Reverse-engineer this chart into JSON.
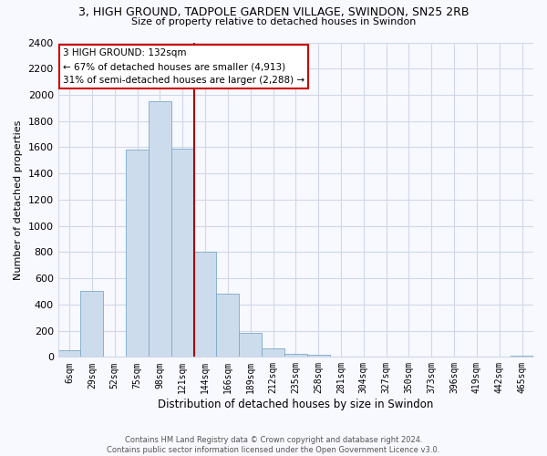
{
  "title": "3, HIGH GROUND, TADPOLE GARDEN VILLAGE, SWINDON, SN25 2RB",
  "subtitle": "Size of property relative to detached houses in Swindon",
  "xlabel": "Distribution of detached houses by size in Swindon",
  "ylabel": "Number of detached properties",
  "bar_color": "#ccdcec",
  "bar_edge_color": "#7aaac8",
  "categories": [
    "6sqm",
    "29sqm",
    "52sqm",
    "75sqm",
    "98sqm",
    "121sqm",
    "144sqm",
    "166sqm",
    "189sqm",
    "212sqm",
    "235sqm",
    "258sqm",
    "281sqm",
    "304sqm",
    "327sqm",
    "350sqm",
    "373sqm",
    "396sqm",
    "419sqm",
    "442sqm",
    "465sqm"
  ],
  "values": [
    50,
    500,
    0,
    1580,
    1950,
    1590,
    800,
    480,
    185,
    65,
    25,
    15,
    0,
    0,
    0,
    0,
    0,
    0,
    0,
    0,
    10
  ],
  "ylim": [
    0,
    2400
  ],
  "yticks": [
    0,
    200,
    400,
    600,
    800,
    1000,
    1200,
    1400,
    1600,
    1800,
    2000,
    2200,
    2400
  ],
  "vline_color": "#aa0000",
  "vline_pos": 5.5,
  "annotation_title": "3 HIGH GROUND: 132sqm",
  "annotation_line1": "← 67% of detached houses are smaller (4,913)",
  "annotation_line2": "31% of semi-detached houses are larger (2,288) →",
  "annotation_box_edge_color": "#cc0000",
  "footer1": "Contains HM Land Registry data © Crown copyright and database right 2024.",
  "footer2": "Contains public sector information licensed under the Open Government Licence v3.0.",
  "bg_color": "#f8f8ff",
  "grid_color": "#d0d8e8"
}
